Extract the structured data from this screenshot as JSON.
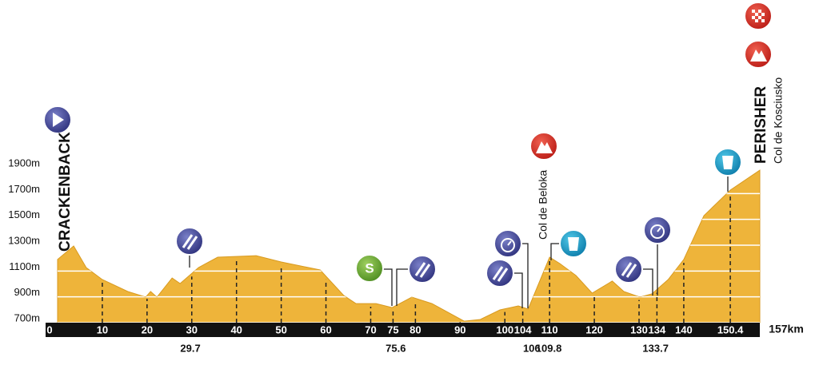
{
  "chart_data": {
    "type": "area",
    "x": [
      0,
      3.6,
      6.4,
      10,
      15.7,
      19.7,
      20.8,
      22.2,
      25.6,
      27.4,
      31.5,
      35.8,
      44.4,
      50,
      58.7,
      64,
      66.7,
      71.2,
      74.8,
      79.2,
      83.7,
      90.9,
      94.5,
      98.9,
      103,
      105.2,
      110,
      112.3,
      115.9,
      119.5,
      124,
      126.6,
      130.2,
      132.9,
      136.5,
      140,
      144.5,
      150.4,
      157
    ],
    "values": [
      1190,
      1294,
      1127,
      1034,
      941,
      898,
      941,
      898,
      1046,
      1003,
      1127,
      1207,
      1219,
      1170,
      1108,
      910,
      848,
      848,
      817,
      898,
      848,
      712,
      725,
      799,
      830,
      805,
      1207,
      1158,
      1065,
      929,
      1022,
      941,
      898,
      923,
      1034,
      1189,
      1529,
      1727,
      1881
    ],
    "color": "#eeb43a",
    "xlim": [
      0,
      157
    ],
    "ylim": [
      700,
      1900
    ],
    "xticks": [
      0,
      10,
      20,
      30,
      40,
      50,
      60,
      70,
      75,
      80,
      90,
      100,
      104,
      110,
      120,
      130,
      134,
      140,
      150.4,
      {
        "value": 157,
        "label": "157km"
      }
    ],
    "yticks": [
      {
        "value": 700,
        "label": "700m"
      },
      {
        "value": 900,
        "label": "900m"
      },
      {
        "value": 1100,
        "label": "1100m"
      },
      {
        "value": 1300,
        "label": "1300m"
      },
      {
        "value": 1500,
        "label": "1500m"
      },
      {
        "value": 1700,
        "label": "1700m"
      },
      {
        "value": 1900,
        "label": "1900m"
      }
    ],
    "km_points": [
      29.7,
      75.6,
      106,
      109.8,
      133.7
    ],
    "grid": true,
    "start": "CRACKENBACK",
    "finish": "PERISHER",
    "finish_climb": "Col de Kosciusko",
    "climb": "Col de Beloka",
    "sprint_icon": "S"
  }
}
